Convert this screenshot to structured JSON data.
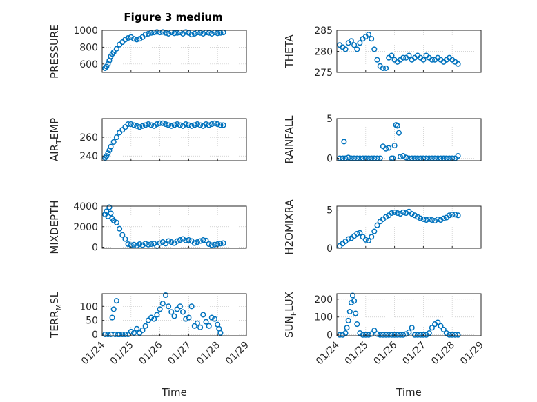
{
  "figure": {
    "title": "Figure 3 medium"
  },
  "colors": {
    "marker": "#0072BD",
    "axis": "#262626",
    "grid": "#c8c8c8",
    "background": "#ffffff"
  },
  "chart_data": [
    {
      "type": "scatter",
      "ylabel": "PRESSURE",
      "xlabel": "",
      "xlim": [
        0,
        5
      ],
      "ylim": [
        500,
        1000
      ],
      "yticks": [
        600,
        800,
        1000
      ],
      "x": [
        0.1,
        0.15,
        0.2,
        0.25,
        0.3,
        0.35,
        0.4,
        0.5,
        0.6,
        0.7,
        0.8,
        0.9,
        1.0,
        1.1,
        1.2,
        1.3,
        1.4,
        1.5,
        1.6,
        1.7,
        1.8,
        1.9,
        2.0,
        2.1,
        2.2,
        2.3,
        2.4,
        2.5,
        2.6,
        2.7,
        2.8,
        2.9,
        3.0,
        3.1,
        3.2,
        3.3,
        3.4,
        3.5,
        3.6,
        3.7,
        3.8,
        3.9,
        4.0,
        4.1,
        4.2
      ],
      "y": [
        550,
        570,
        600,
        640,
        690,
        720,
        740,
        780,
        830,
        860,
        890,
        910,
        920,
        900,
        890,
        900,
        920,
        950,
        960,
        970,
        975,
        980,
        975,
        980,
        970,
        960,
        975,
        965,
        970,
        975,
        960,
        980,
        970,
        950,
        960,
        975,
        970,
        960,
        975,
        970,
        960,
        975,
        965,
        970,
        975
      ]
    },
    {
      "type": "scatter",
      "ylabel": "THETA",
      "xlabel": "",
      "xlim": [
        0,
        5
      ],
      "ylim": [
        275,
        285
      ],
      "yticks": [
        275,
        280,
        285
      ],
      "x": [
        0.1,
        0.2,
        0.3,
        0.4,
        0.5,
        0.6,
        0.7,
        0.8,
        0.9,
        1.0,
        1.1,
        1.2,
        1.3,
        1.4,
        1.5,
        1.6,
        1.7,
        1.8,
        1.9,
        2.0,
        2.1,
        2.2,
        2.3,
        2.4,
        2.5,
        2.6,
        2.7,
        2.8,
        2.9,
        3.0,
        3.1,
        3.2,
        3.3,
        3.4,
        3.5,
        3.6,
        3.7,
        3.8,
        3.9,
        4.0,
        4.1,
        4.2
      ],
      "y": [
        281.5,
        281,
        280.5,
        282,
        282.5,
        281.5,
        280.5,
        282,
        283,
        283.5,
        284,
        283,
        280.5,
        278,
        276.5,
        276,
        276,
        278.5,
        279,
        278,
        277.5,
        278,
        278.5,
        278.5,
        279,
        278,
        278.5,
        279,
        278.5,
        278,
        279,
        278.5,
        278,
        278,
        278.5,
        278,
        277.5,
        278,
        278.5,
        278,
        277.5,
        277
      ]
    },
    {
      "type": "scatter",
      "ylabel": "AIR_TEMP",
      "xlabel": "",
      "xlim": [
        0,
        5
      ],
      "ylim": [
        235,
        280
      ],
      "yticks": [
        240,
        260
      ],
      "x": [
        0.1,
        0.15,
        0.2,
        0.25,
        0.3,
        0.4,
        0.5,
        0.6,
        0.7,
        0.8,
        0.9,
        1.0,
        1.1,
        1.2,
        1.3,
        1.4,
        1.5,
        1.6,
        1.7,
        1.8,
        1.9,
        2.0,
        2.1,
        2.2,
        2.3,
        2.4,
        2.5,
        2.6,
        2.7,
        2.8,
        2.9,
        3.0,
        3.1,
        3.2,
        3.3,
        3.4,
        3.5,
        3.6,
        3.7,
        3.8,
        3.9,
        4.0,
        4.1,
        4.2
      ],
      "y": [
        238,
        240,
        243,
        246,
        250,
        255,
        260,
        265,
        268,
        271,
        274,
        274,
        273,
        272,
        271,
        272,
        273,
        274,
        273,
        272,
        274,
        275,
        275,
        274,
        273,
        272,
        273,
        274,
        273,
        272,
        274,
        273,
        272,
        273,
        274,
        273,
        272,
        274,
        273,
        274,
        275,
        274,
        273,
        273
      ]
    },
    {
      "type": "scatter",
      "ylabel": "RAINFALL",
      "xlabel": "",
      "xlim": [
        0,
        5
      ],
      "ylim": [
        -0.3,
        5
      ],
      "yticks": [
        0,
        5
      ],
      "x": [
        0.1,
        0.2,
        0.25,
        0.3,
        0.4,
        0.5,
        0.6,
        0.7,
        0.8,
        0.9,
        1.0,
        1.1,
        1.2,
        1.3,
        1.4,
        1.5,
        1.6,
        1.7,
        1.8,
        1.9,
        1.95,
        2.0,
        2.05,
        2.1,
        2.15,
        2.2,
        2.3,
        2.4,
        2.5,
        2.6,
        2.7,
        2.8,
        2.9,
        3.0,
        3.1,
        3.2,
        3.3,
        3.4,
        3.5,
        3.6,
        3.7,
        3.8,
        3.9,
        4.0,
        4.1,
        4.2
      ],
      "y": [
        0,
        0,
        2.1,
        0,
        0.1,
        0,
        0,
        0,
        0,
        0,
        0,
        0,
        0,
        0,
        0,
        0,
        1.5,
        1.2,
        1.3,
        0,
        0,
        1.6,
        4.2,
        4.1,
        3.2,
        0.2,
        0.3,
        0.1,
        0,
        0,
        0,
        0,
        0,
        0,
        0,
        0,
        0,
        0,
        0,
        0,
        0,
        0,
        0,
        0,
        0,
        0.3
      ]
    },
    {
      "type": "scatter",
      "ylabel": "MIXDEPTH",
      "xlabel": "",
      "xlim": [
        0,
        5
      ],
      "ylim": [
        -100,
        4000
      ],
      "yticks": [
        0,
        2000,
        4000
      ],
      "x": [
        0.1,
        0.15,
        0.2,
        0.25,
        0.3,
        0.35,
        0.4,
        0.5,
        0.6,
        0.7,
        0.8,
        0.9,
        1.0,
        1.1,
        1.2,
        1.3,
        1.4,
        1.5,
        1.6,
        1.7,
        1.8,
        1.9,
        2.0,
        2.1,
        2.2,
        2.3,
        2.4,
        2.5,
        2.6,
        2.7,
        2.8,
        2.9,
        3.0,
        3.1,
        3.2,
        3.3,
        3.4,
        3.5,
        3.6,
        3.7,
        3.8,
        3.9,
        4.0,
        4.1,
        4.2
      ],
      "y": [
        3200,
        3500,
        3000,
        3900,
        3300,
        2800,
        2600,
        2400,
        1800,
        1200,
        800,
        300,
        200,
        250,
        150,
        300,
        200,
        350,
        250,
        300,
        350,
        100,
        400,
        500,
        350,
        600,
        500,
        400,
        600,
        700,
        800,
        650,
        700,
        600,
        400,
        500,
        600,
        700,
        650,
        300,
        200,
        250,
        300,
        350,
        400
      ]
    },
    {
      "type": "scatter",
      "ylabel": "H2OMIXRA",
      "xlabel": "",
      "xlim": [
        0,
        5
      ],
      "ylim": [
        0,
        5.5
      ],
      "yticks": [
        0,
        5
      ],
      "x": [
        0.1,
        0.2,
        0.3,
        0.4,
        0.5,
        0.6,
        0.7,
        0.8,
        0.9,
        1.0,
        1.1,
        1.2,
        1.3,
        1.4,
        1.5,
        1.6,
        1.7,
        1.8,
        1.9,
        2.0,
        2.1,
        2.2,
        2.3,
        2.4,
        2.5,
        2.6,
        2.7,
        2.8,
        2.9,
        3.0,
        3.1,
        3.2,
        3.3,
        3.4,
        3.5,
        3.6,
        3.7,
        3.8,
        3.9,
        4.0,
        4.1,
        4.2
      ],
      "y": [
        0.3,
        0.6,
        0.9,
        1.2,
        1.3,
        1.6,
        1.9,
        2.0,
        1.5,
        1.1,
        1.0,
        1.5,
        2.2,
        3.0,
        3.5,
        3.8,
        4.1,
        4.3,
        4.6,
        4.7,
        4.6,
        4.5,
        4.7,
        4.6,
        4.8,
        4.5,
        4.3,
        4.1,
        3.9,
        3.8,
        3.7,
        3.8,
        3.7,
        3.6,
        3.8,
        3.7,
        3.9,
        4.0,
        4.3,
        4.4,
        4.4,
        4.3
      ]
    },
    {
      "type": "scatter",
      "ylabel": "TERR_MSL",
      "xlabel": "Time",
      "xlim": [
        0,
        5
      ],
      "ylim": [
        -5,
        145
      ],
      "yticks": [
        0,
        50,
        100
      ],
      "xticklabels": [
        "01/24",
        "01/25",
        "01/26",
        "01/27",
        "01/28",
        "01/29"
      ],
      "x": [
        0.1,
        0.2,
        0.3,
        0.35,
        0.4,
        0.45,
        0.5,
        0.55,
        0.6,
        0.7,
        0.8,
        0.9,
        1.0,
        1.1,
        1.2,
        1.3,
        1.4,
        1.5,
        1.6,
        1.7,
        1.8,
        1.9,
        2.0,
        2.1,
        2.2,
        2.3,
        2.4,
        2.5,
        2.6,
        2.7,
        2.8,
        2.9,
        3.0,
        3.1,
        3.2,
        3.3,
        3.4,
        3.5,
        3.6,
        3.7,
        3.8,
        3.9,
        4.0,
        4.05,
        4.1
      ],
      "y": [
        0,
        0,
        0,
        60,
        90,
        0,
        120,
        0,
        0,
        0,
        0,
        0,
        10,
        5,
        20,
        5,
        15,
        30,
        50,
        60,
        55,
        70,
        90,
        110,
        140,
        100,
        80,
        65,
        90,
        100,
        80,
        55,
        60,
        100,
        30,
        40,
        25,
        70,
        45,
        30,
        60,
        55,
        35,
        20,
        5
      ]
    },
    {
      "type": "scatter",
      "ylabel": "SUN_FLUX",
      "xlabel": "Time",
      "xlim": [
        0,
        5
      ],
      "ylim": [
        -5,
        230
      ],
      "yticks": [
        0,
        100,
        200
      ],
      "xticklabels": [
        "01/24",
        "01/25",
        "01/26",
        "01/27",
        "01/28",
        "01/29"
      ],
      "x": [
        0.1,
        0.2,
        0.3,
        0.35,
        0.4,
        0.45,
        0.5,
        0.55,
        0.6,
        0.65,
        0.7,
        0.8,
        0.9,
        1.0,
        1.1,
        1.2,
        1.3,
        1.4,
        1.5,
        1.6,
        1.7,
        1.8,
        1.9,
        2.0,
        2.1,
        2.2,
        2.3,
        2.4,
        2.5,
        2.6,
        2.7,
        2.8,
        2.9,
        3.0,
        3.1,
        3.2,
        3.3,
        3.4,
        3.5,
        3.6,
        3.7,
        3.8,
        3.9,
        4.0,
        4.1,
        4.2
      ],
      "y": [
        0,
        0,
        10,
        40,
        80,
        130,
        180,
        220,
        190,
        120,
        60,
        10,
        0,
        0,
        0,
        5,
        25,
        5,
        0,
        0,
        0,
        0,
        0,
        0,
        0,
        0,
        0,
        5,
        15,
        40,
        0,
        0,
        0,
        0,
        0,
        10,
        40,
        60,
        70,
        50,
        30,
        10,
        0,
        0,
        0,
        0
      ]
    }
  ]
}
